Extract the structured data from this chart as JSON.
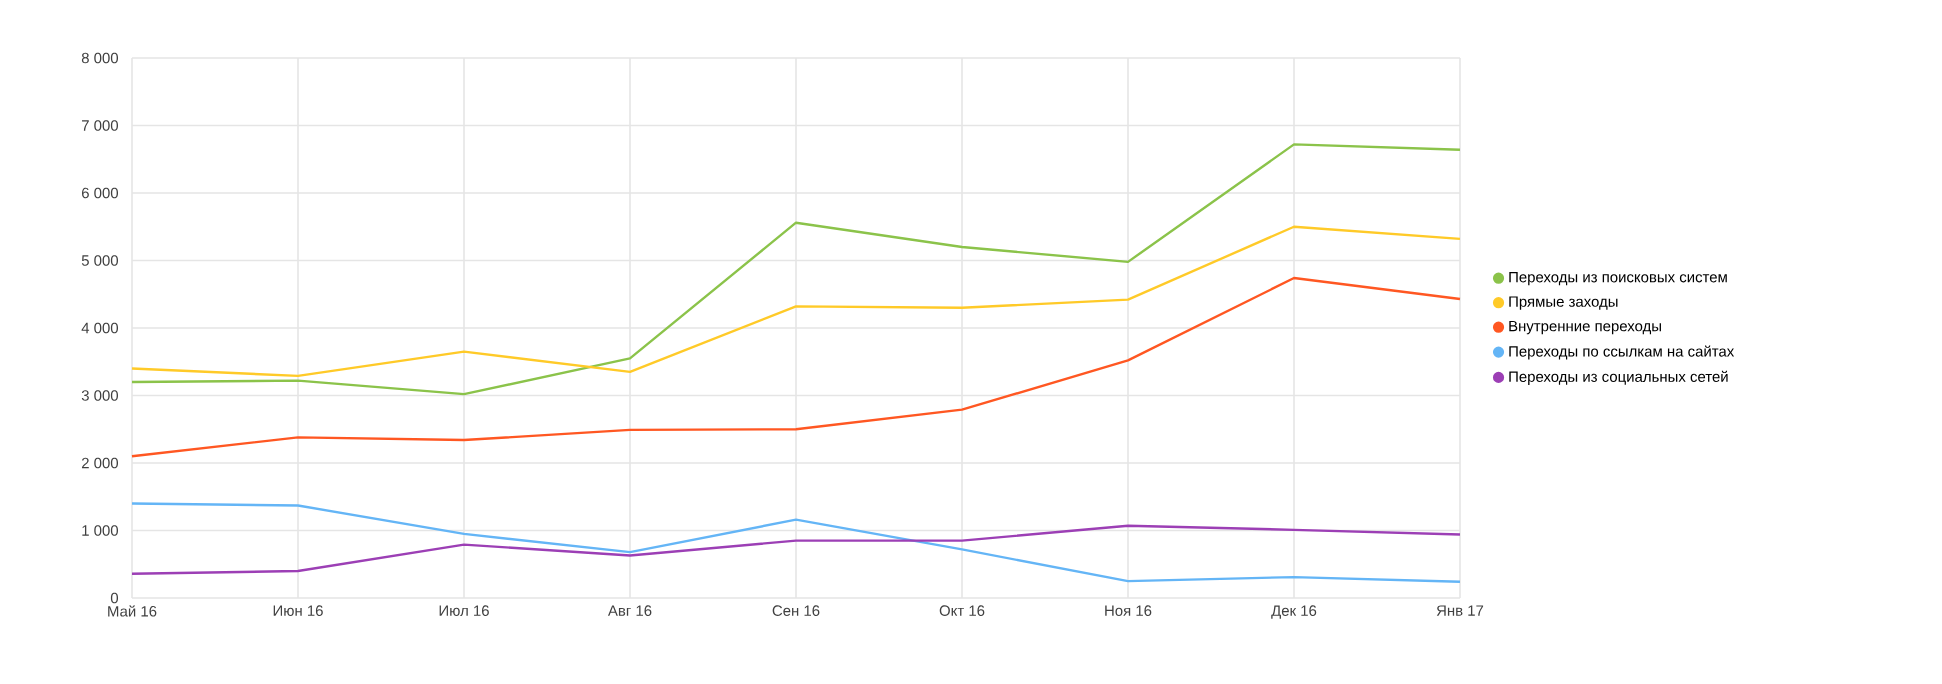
{
  "chart_data": {
    "type": "line",
    "categories": [
      "Май 16",
      "Июн 16",
      "Июл 16",
      "Авг 16",
      "Сен 16",
      "Окт 16",
      "Ноя 16",
      "Дек 16",
      "Янв 17"
    ],
    "series": [
      {
        "name": "Переходы из поисковых систем",
        "color": "#8bc34a",
        "values": [
          3200,
          3220,
          3020,
          3550,
          5560,
          5200,
          4980,
          6720,
          6640
        ]
      },
      {
        "name": "Прямые заходы",
        "color": "#ffca28",
        "values": [
          3400,
          3290,
          3650,
          3350,
          4320,
          4300,
          4420,
          5500,
          5320
        ]
      },
      {
        "name": "Внутренние переходы",
        "color": "#ff5722",
        "values": [
          2100,
          2380,
          2340,
          2490,
          2500,
          2790,
          3520,
          4740,
          4430
        ]
      },
      {
        "name": "Переходы по ссылкам на сайтах",
        "color": "#64b5f6",
        "values": [
          1400,
          1370,
          950,
          680,
          1160,
          720,
          250,
          310,
          240
        ]
      },
      {
        "name": "Переходы из социальных сетей",
        "color": "#9c3fb5",
        "values": [
          360,
          400,
          790,
          630,
          850,
          850,
          1070,
          1010,
          940
        ]
      }
    ],
    "ylim": [
      0,
      8000
    ],
    "yticks": [
      0,
      {
        "value": 1000,
        "label": "1 000"
      },
      {
        "value": 2000,
        "label": "2 000"
      },
      {
        "value": 3000,
        "label": "3 000"
      },
      {
        "value": 4000,
        "label": "4 000"
      },
      {
        "value": 5000,
        "label": "5 000"
      },
      {
        "value": 6000,
        "label": "6 000"
      },
      {
        "value": 7000,
        "label": "7 000"
      },
      {
        "value": 8000,
        "label": "8 000"
      }
    ],
    "grid": true,
    "legend": "right",
    "marker": "none",
    "line_style": "solid"
  }
}
